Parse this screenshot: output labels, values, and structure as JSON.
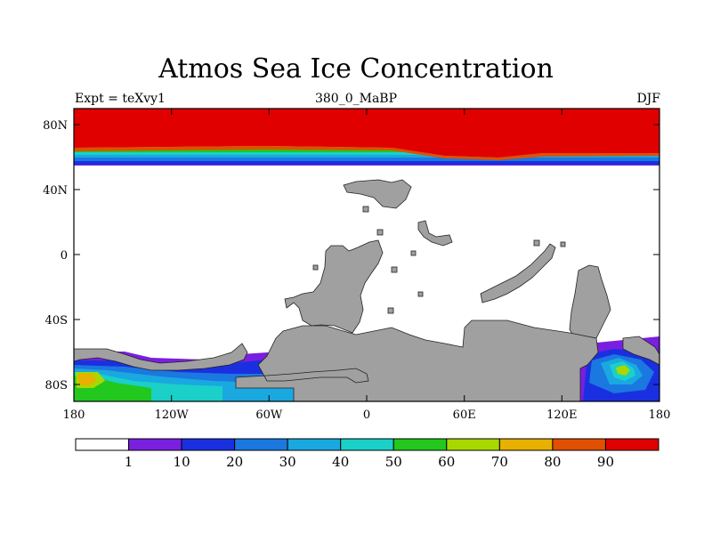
{
  "header": {
    "title": "Atmos Sea Ice Concentration",
    "experiment": "Expt = teXvy1",
    "period": "380_0_MaBP",
    "season": "DJF"
  },
  "map": {
    "lat_ticks": [
      "80N",
      "40N",
      "0",
      "40S",
      "80S"
    ],
    "lon_ticks": [
      "180",
      "120W",
      "60W",
      "0",
      "60E",
      "120E",
      "180"
    ],
    "land_color": "#a0a0a0",
    "ocean_color": "#ffffff"
  },
  "colorbar": {
    "colors": [
      "#ffffff",
      "#7a1fe0",
      "#1a30e0",
      "#1a78e0",
      "#1aa8e0",
      "#1ad0c8",
      "#22c81e",
      "#a8d800",
      "#e8b000",
      "#e05000",
      "#e00000"
    ],
    "labels": [
      "1",
      "10",
      "20",
      "30",
      "40",
      "50",
      "60",
      "70",
      "80",
      "90"
    ]
  }
}
